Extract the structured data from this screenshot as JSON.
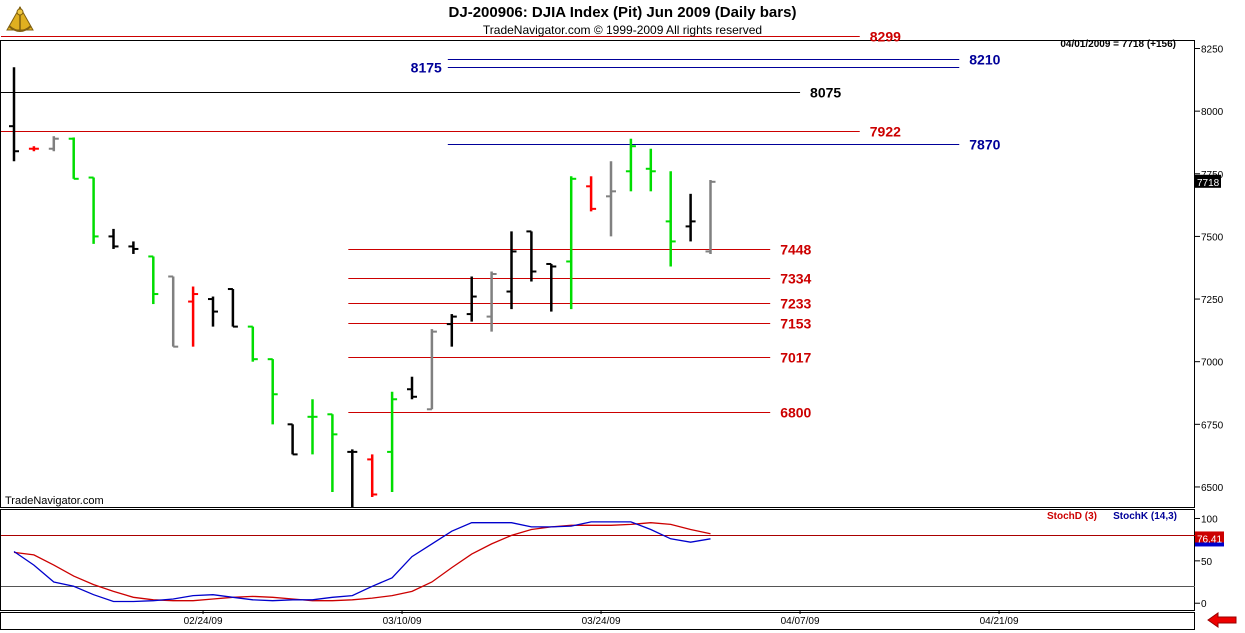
{
  "header": {
    "title": "DJ-200906:  DJIA Index (Pit) Jun 2009  (Daily bars)",
    "subtitle": "TradeNavigator.com © 1999-2009 All rights reserved"
  },
  "icons": {
    "logo": "sextant-logo-icon",
    "back": "red-left-arrow-icon"
  },
  "colors": {
    "up_bar": "#00dd00",
    "down_bar": "#ff0000",
    "gray_bar": "#808080",
    "black_bar": "#000000",
    "red_line": "#cc0000",
    "blue_line": "#000099",
    "stochD": "#cc0000",
    "stochK": "#0000cc",
    "price_box": "#000000",
    "stoch_box": "#cc0000"
  },
  "chart_data": [
    {
      "type": "bar",
      "subtype": "ohlc",
      "info_label": "04/01/2009 = 7718 (+156)",
      "watermark": "TradeNavigator.com",
      "ylim": [
        6420,
        8280
      ],
      "yticks": [
        6500,
        6750,
        7000,
        7250,
        7500,
        7750,
        8000,
        8250
      ],
      "current_price": "7718",
      "x_tick_labels": [
        {
          "label": "02/24/09",
          "index": 9.5
        },
        {
          "label": "03/10/09",
          "index": 19.5
        },
        {
          "label": "03/24/09",
          "index": 29.5
        },
        {
          "label": "04/07/09",
          "index": 39.5
        },
        {
          "label": "04/21/09",
          "index": 49.5
        }
      ],
      "bars": [
        {
          "o": 7940,
          "h": 8175,
          "l": 7800,
          "c": 7840,
          "color": "black"
        },
        {
          "o": 7850,
          "h": 7860,
          "l": 7840,
          "c": 7850,
          "color": "red"
        },
        {
          "o": 7850,
          "h": 7900,
          "l": 7840,
          "c": 7890,
          "color": "gray"
        },
        {
          "o": 7890,
          "h": 7895,
          "l": 7730,
          "c": 7730,
          "color": "green"
        },
        {
          "o": 7735,
          "h": 7735,
          "l": 7470,
          "c": 7500,
          "color": "green"
        },
        {
          "o": 7500,
          "h": 7530,
          "l": 7450,
          "c": 7460,
          "color": "black"
        },
        {
          "o": 7460,
          "h": 7480,
          "l": 7430,
          "c": 7450,
          "color": "black"
        },
        {
          "o": 7420,
          "h": 7420,
          "l": 7230,
          "c": 7270,
          "color": "green"
        },
        {
          "o": 7340,
          "h": 7340,
          "l": 7060,
          "c": 7060,
          "color": "gray"
        },
        {
          "o": 7240,
          "h": 7300,
          "l": 7060,
          "c": 7270,
          "color": "red"
        },
        {
          "o": 7250,
          "h": 7260,
          "l": 7140,
          "c": 7200,
          "color": "black"
        },
        {
          "o": 7290,
          "h": 7290,
          "l": 7140,
          "c": 7140,
          "color": "black"
        },
        {
          "o": 7140,
          "h": 7140,
          "l": 7000,
          "c": 7010,
          "color": "green"
        },
        {
          "o": 7010,
          "h": 7010,
          "l": 6750,
          "c": 6870,
          "color": "green"
        },
        {
          "o": 6750,
          "h": 6750,
          "l": 6630,
          "c": 6630,
          "color": "black"
        },
        {
          "o": 6780,
          "h": 6850,
          "l": 6630,
          "c": 6780,
          "color": "green"
        },
        {
          "o": 6790,
          "h": 6790,
          "l": 6480,
          "c": 6710,
          "color": "green"
        },
        {
          "o": 6640,
          "h": 6650,
          "l": 6420,
          "c": 6640,
          "color": "black"
        },
        {
          "o": 6610,
          "h": 6630,
          "l": 6460,
          "c": 6470,
          "color": "red"
        },
        {
          "o": 6640,
          "h": 6880,
          "l": 6480,
          "c": 6850,
          "color": "green"
        },
        {
          "o": 6890,
          "h": 6940,
          "l": 6850,
          "c": 6860,
          "color": "black"
        },
        {
          "o": 6810,
          "h": 7130,
          "l": 6810,
          "c": 7120,
          "color": "gray"
        },
        {
          "o": 7150,
          "h": 7190,
          "l": 7060,
          "c": 7180,
          "color": "black"
        },
        {
          "o": 7190,
          "h": 7340,
          "l": 7160,
          "c": 7260,
          "color": "black"
        },
        {
          "o": 7180,
          "h": 7360,
          "l": 7120,
          "c": 7350,
          "color": "gray"
        },
        {
          "o": 7280,
          "h": 7520,
          "l": 7210,
          "c": 7440,
          "color": "black"
        },
        {
          "o": 7520,
          "h": 7520,
          "l": 7320,
          "c": 7360,
          "color": "black"
        },
        {
          "o": 7390,
          "h": 7390,
          "l": 7200,
          "c": 7380,
          "color": "black"
        },
        {
          "o": 7400,
          "h": 7740,
          "l": 7210,
          "c": 7730,
          "color": "green"
        },
        {
          "o": 7700,
          "h": 7740,
          "l": 7600,
          "c": 7610,
          "color": "red"
        },
        {
          "o": 7660,
          "h": 7800,
          "l": 7500,
          "c": 7680,
          "color": "gray"
        },
        {
          "o": 7760,
          "h": 7890,
          "l": 7680,
          "c": 7860,
          "color": "green"
        },
        {
          "o": 7770,
          "h": 7850,
          "l": 7680,
          "c": 7760,
          "color": "green"
        },
        {
          "o": 7560,
          "h": 7760,
          "l": 7380,
          "c": 7480,
          "color": "green"
        },
        {
          "o": 7540,
          "h": 7670,
          "l": 7480,
          "c": 7560,
          "color": "black"
        },
        {
          "o": 7440,
          "h": 7725,
          "l": 7430,
          "c": 7718,
          "color": "gray"
        }
      ],
      "levels": [
        {
          "value": 8299,
          "label": "8299",
          "color": "red",
          "from": -1,
          "to": 42.5
        },
        {
          "value": 8210,
          "label": "8210",
          "color": "blue",
          "from": 21.8,
          "to": 47.5
        },
        {
          "value": 8175,
          "label": "8175",
          "color": "blue",
          "from": 21.8,
          "to": 47.5,
          "label_left": true
        },
        {
          "value": 8075,
          "label": "8075",
          "color": "black",
          "from": -1,
          "to": 39.5
        },
        {
          "value": 7922,
          "label": "7922",
          "color": "red",
          "from": -1,
          "to": 42.5
        },
        {
          "value": 7870,
          "label": "7870",
          "color": "blue",
          "from": 21.8,
          "to": 47.5
        },
        {
          "value": 7448,
          "label": "7448",
          "color": "red",
          "from": 16.8,
          "to": 38
        },
        {
          "value": 7334,
          "label": "7334",
          "color": "red",
          "from": 16.8,
          "to": 38
        },
        {
          "value": 7233,
          "label": "7233",
          "color": "red",
          "from": 16.8,
          "to": 38
        },
        {
          "value": 7153,
          "label": "7153",
          "color": "red",
          "from": 16.8,
          "to": 38
        },
        {
          "value": 7017,
          "label": "7017",
          "color": "red",
          "from": 16.8,
          "to": 38
        },
        {
          "value": 6800,
          "label": "6800",
          "color": "red",
          "from": 16.8,
          "to": 38
        }
      ]
    },
    {
      "type": "line",
      "ylim": [
        -8,
        110
      ],
      "yticks": [
        0,
        50,
        100
      ],
      "ref_lines": [
        20,
        80
      ],
      "current_value": "76.41",
      "series": [
        {
          "name": "StochD (3)",
          "color": "red",
          "values": [
            60,
            57,
            45,
            32,
            22,
            14,
            7,
            4,
            3,
            3,
            5,
            7,
            8,
            7,
            5,
            3,
            3,
            4,
            6,
            9,
            14,
            25,
            42,
            58,
            70,
            80,
            87,
            90,
            92,
            92,
            92,
            93,
            95,
            93,
            87,
            82
          ]
        },
        {
          "name": "StochK (14,3)",
          "color": "blue",
          "values": [
            61,
            45,
            25,
            20,
            10,
            2,
            2,
            3,
            5,
            9,
            10,
            7,
            4,
            3,
            4,
            4,
            7,
            9,
            20,
            30,
            55,
            70,
            85,
            95,
            95,
            95,
            90,
            90,
            91,
            96,
            96,
            96,
            87,
            76,
            72,
            76
          ]
        }
      ]
    }
  ]
}
